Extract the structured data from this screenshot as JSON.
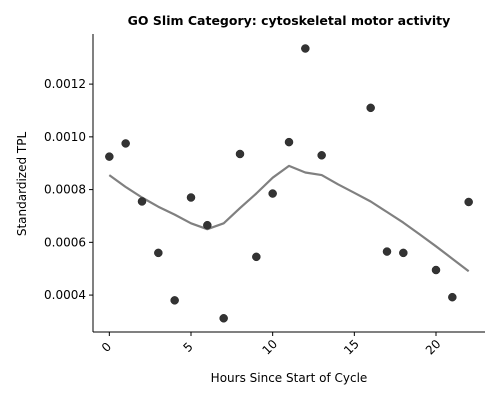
{
  "chart_data": {
    "type": "scatter",
    "title": "GO Slim Category: cytoskeletal motor activity",
    "xlabel": "Hours Since Start of Cycle",
    "ylabel": "Standardized TPL",
    "xlim": [
      -1,
      23
    ],
    "ylim": [
      0.00026,
      0.00139
    ],
    "xticks": [
      0,
      5,
      10,
      15,
      20
    ],
    "xtick_labels": [
      "0",
      "5",
      "10",
      "15",
      "20"
    ],
    "yticks": [
      0.0004,
      0.0006,
      0.0008,
      0.001,
      0.0012
    ],
    "ytick_labels": [
      "0.0004",
      "0.0006",
      "0.0008",
      "0.0010",
      "0.0012"
    ],
    "grid": false,
    "series": [
      {
        "type": "scatter",
        "color": "#333333",
        "points": [
          {
            "x": 0,
            "y": 0.000925
          },
          {
            "x": 1,
            "y": 0.000975
          },
          {
            "x": 2,
            "y": 0.000755
          },
          {
            "x": 3,
            "y": 0.00056
          },
          {
            "x": 4,
            "y": 0.00038
          },
          {
            "x": 5,
            "y": 0.00077
          },
          {
            "x": 6,
            "y": 0.000665
          },
          {
            "x": 7,
            "y": 0.000312
          },
          {
            "x": 8,
            "y": 0.000935
          },
          {
            "x": 9,
            "y": 0.000545
          },
          {
            "x": 10,
            "y": 0.000785
          },
          {
            "x": 11,
            "y": 0.00098
          },
          {
            "x": 12,
            "y": 0.001335
          },
          {
            "x": 13,
            "y": 0.00093
          },
          {
            "x": 16,
            "y": 0.00111
          },
          {
            "x": 17,
            "y": 0.000565
          },
          {
            "x": 18,
            "y": 0.00056
          },
          {
            "x": 20,
            "y": 0.000495
          },
          {
            "x": 21,
            "y": 0.000392
          },
          {
            "x": 22,
            "y": 0.000753
          }
        ]
      },
      {
        "type": "line",
        "color": "#808080",
        "points": [
          {
            "x": 0,
            "y": 0.000855
          },
          {
            "x": 1,
            "y": 0.00081
          },
          {
            "x": 2,
            "y": 0.00077
          },
          {
            "x": 3,
            "y": 0.000735
          },
          {
            "x": 4,
            "y": 0.000705
          },
          {
            "x": 5,
            "y": 0.000672
          },
          {
            "x": 6,
            "y": 0.00065
          },
          {
            "x": 7,
            "y": 0.000672
          },
          {
            "x": 8,
            "y": 0.00073
          },
          {
            "x": 9,
            "y": 0.000785
          },
          {
            "x": 10,
            "y": 0.000845
          },
          {
            "x": 11,
            "y": 0.00089
          },
          {
            "x": 12,
            "y": 0.000865
          },
          {
            "x": 13,
            "y": 0.000855
          },
          {
            "x": 14,
            "y": 0.00082
          },
          {
            "x": 15,
            "y": 0.000788
          },
          {
            "x": 16,
            "y": 0.000755
          },
          {
            "x": 17,
            "y": 0.000715
          },
          {
            "x": 18,
            "y": 0.000675
          },
          {
            "x": 19,
            "y": 0.00063
          },
          {
            "x": 20,
            "y": 0.000585
          },
          {
            "x": 21,
            "y": 0.000538
          },
          {
            "x": 22,
            "y": 0.00049
          }
        ]
      }
    ]
  }
}
